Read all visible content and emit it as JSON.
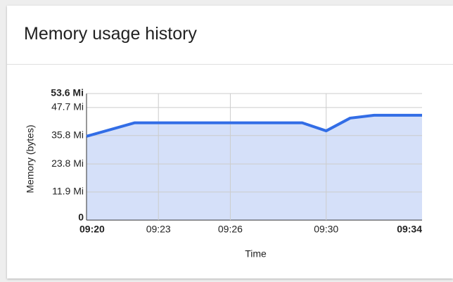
{
  "title": "Memory usage history",
  "chart_data": {
    "type": "area",
    "y_label": "Memory (bytes)",
    "x_label": "Time",
    "x": [
      20,
      22,
      29,
      30,
      31,
      32,
      34
    ],
    "series": [
      {
        "name": "Memory",
        "color": "#326de6",
        "values": [
          35.5,
          41.2,
          41.2,
          37.8,
          43.2,
          44.4,
          44.4
        ]
      }
    ],
    "xlim": [
      20,
      34
    ],
    "xticks": [
      {
        "value": 20,
        "label": "09:20"
      },
      {
        "value": 23,
        "label": "09:23"
      },
      {
        "value": 26,
        "label": "09:26"
      },
      {
        "value": 30,
        "label": "09:30"
      },
      {
        "value": 34,
        "label": "09:34"
      }
    ],
    "ylim": [
      0,
      53.6
    ],
    "yticks": [
      0,
      {
        "value": 11.9,
        "label": "11.9 Mi"
      },
      {
        "value": 23.8,
        "label": "23.8 Mi"
      },
      {
        "value": 35.8,
        "label": "35.8 Mi"
      },
      {
        "value": 47.7,
        "label": "47.7 Mi"
      },
      {
        "value": 53.6,
        "label": "53.6 Mi"
      }
    ],
    "grid": true
  }
}
